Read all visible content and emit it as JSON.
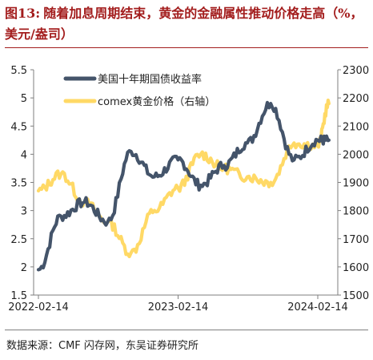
{
  "figure": {
    "number": "图13:",
    "title": "随着加息周期结束，黄金的金融属性推动价格走高（%，美元/盎司）",
    "source": "数据来源：CMF 闪存网，东吴证券研究所"
  },
  "chart_data": {
    "type": "line",
    "x": [
      "2022-02-14",
      "2022-04-14",
      "2022-06-14",
      "2022-08-14",
      "2022-10-14",
      "2022-12-14",
      "2023-02-14",
      "2023-04-14",
      "2023-06-14",
      "2023-08-14",
      "2023-10-14",
      "2023-12-14",
      "2024-02-14",
      "2024-03-14"
    ],
    "x_tick_labels": [
      "2022-02-14",
      "2023-02-14",
      "2024-02-14"
    ],
    "y_left": {
      "range": [
        1.5,
        5.5
      ],
      "ticks": [
        "1.5",
        "2",
        "2.5",
        "3",
        "3.5",
        "4",
        "4.5",
        "5",
        "5.5"
      ]
    },
    "y_right": {
      "range": [
        1500,
        2300
      ],
      "ticks": [
        "1500",
        "1600",
        "1700",
        "1800",
        "1900",
        "2000",
        "2100",
        "2200",
        "2300"
      ]
    },
    "series": [
      {
        "name": "美国十年期国债收益率",
        "axis": "left",
        "color": "#44546a",
        "values": [
          1.95,
          2.9,
          3.15,
          2.8,
          4.05,
          3.6,
          3.9,
          3.45,
          3.8,
          4.2,
          4.9,
          3.9,
          4.25,
          4.25
        ]
      },
      {
        "name": "comex黄金价格（右轴）",
        "axis": "right",
        "color": "#ffd966",
        "values": [
          1870,
          1930,
          1830,
          1760,
          1650,
          1800,
          1880,
          2000,
          1950,
          1920,
          1900,
          2040,
          2030,
          2180
        ]
      }
    ],
    "legend_position": "top-center",
    "grid": false
  }
}
